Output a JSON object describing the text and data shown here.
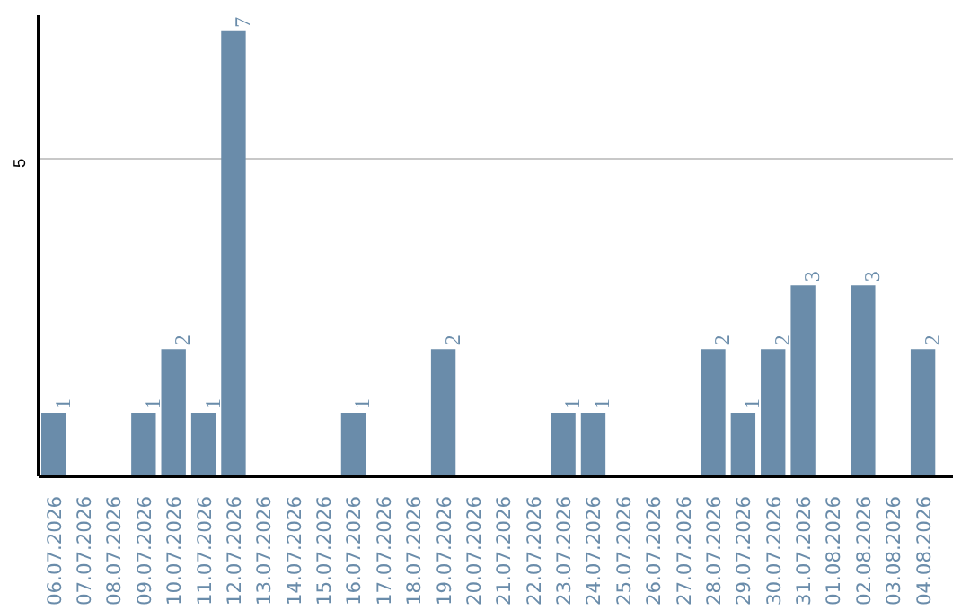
{
  "chart_data": {
    "type": "bar",
    "categories": [
      "06.07.2026",
      "07.07.2026",
      "08.07.2026",
      "09.07.2026",
      "10.07.2026",
      "11.07.2026",
      "12.07.2026",
      "13.07.2026",
      "14.07.2026",
      "15.07.2026",
      "16.07.2026",
      "17.07.2026",
      "18.07.2026",
      "19.07.2026",
      "20.07.2026",
      "21.07.2026",
      "22.07.2026",
      "23.07.2026",
      "24.07.2026",
      "25.07.2026",
      "26.07.2026",
      "27.07.2026",
      "28.07.2026",
      "29.07.2026",
      "30.07.2026",
      "31.07.2026",
      "01.08.2026",
      "02.08.2026",
      "03.08.2026",
      "04.08.2026"
    ],
    "values": [
      1,
      0,
      0,
      1,
      2,
      1,
      7,
      0,
      0,
      0,
      1,
      0,
      0,
      2,
      0,
      0,
      0,
      1,
      1,
      0,
      0,
      0,
      2,
      1,
      2,
      3,
      0,
      3,
      0,
      2
    ],
    "value_labels": [
      "1",
      null,
      null,
      "1",
      "2",
      "1",
      "7",
      null,
      null,
      null,
      "1",
      null,
      null,
      "2",
      null,
      null,
      null,
      "1",
      "1",
      null,
      null,
      null,
      "2",
      "1",
      "2",
      "3",
      null,
      "3",
      null,
      "2"
    ],
    "color": "#6a8caa",
    "ylim": [
      0,
      7.25
    ],
    "yticks": [
      5
    ],
    "grid": "y"
  }
}
